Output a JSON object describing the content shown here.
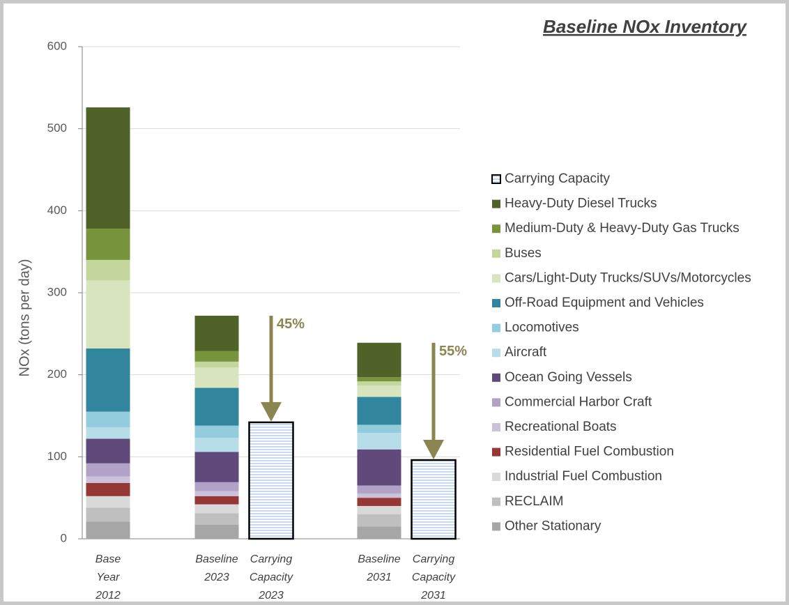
{
  "chart_data": {
    "type": "stacked_bar",
    "title": "Baseline NOx Inventory",
    "y_label": "NOx (tons per day)",
    "categories": [
      "Base Year 2012",
      "Baseline 2023",
      "Carrying Capacity 2023",
      "Baseline 2031",
      "Carrying Capacity 2031"
    ],
    "ylim": [
      0,
      600
    ],
    "yticks": [
      0,
      100,
      200,
      300,
      400,
      500,
      600
    ],
    "grid": true,
    "legend": "right",
    "series": [
      {
        "name": "Carrying Capacity",
        "color": "#dbe5f1",
        "values": [
          null,
          null,
          142,
          null,
          96
        ]
      },
      {
        "name": "Heavy-Duty Diesel Trucks",
        "color": "#4f6228",
        "values": [
          148,
          43,
          null,
          42,
          null
        ]
      },
      {
        "name": "Medium-Duty & Heavy-Duty Gas Trucks",
        "color": "#77933c",
        "values": [
          38,
          13,
          null,
          5,
          null
        ]
      },
      {
        "name": "Buses",
        "color": "#c3d69b",
        "values": [
          25,
          7,
          null,
          5,
          null
        ]
      },
      {
        "name": "Cars/Light-Duty Trucks/SUVs/Motorcycles",
        "color": "#d7e4bd",
        "values": [
          83,
          25,
          null,
          14,
          null
        ]
      },
      {
        "name": "Off-Road Equipment and Vehicles",
        "color": "#31859c",
        "values": [
          77,
          46,
          null,
          34,
          null
        ]
      },
      {
        "name": "Locomotives",
        "color": "#93cddd",
        "values": [
          19,
          15,
          null,
          10,
          null
        ]
      },
      {
        "name": "Aircraft",
        "color": "#b7dee8",
        "values": [
          14,
          17,
          null,
          20,
          null
        ]
      },
      {
        "name": "Ocean Going Vessels",
        "color": "#604a7b",
        "values": [
          30,
          37,
          null,
          44,
          null
        ]
      },
      {
        "name": "Commercial Harbor Craft",
        "color": "#b3a2c7",
        "values": [
          16,
          11,
          null,
          10,
          null
        ]
      },
      {
        "name": "Recreational Boats",
        "color": "#ccc1da",
        "values": [
          8,
          6,
          null,
          5,
          null
        ]
      },
      {
        "name": "Residential Fuel Combustion",
        "color": "#953735",
        "values": [
          16,
          10,
          null,
          10,
          null
        ]
      },
      {
        "name": "Industrial Fuel Combustion",
        "color": "#d9d9d9",
        "values": [
          14,
          11,
          null,
          10,
          null
        ]
      },
      {
        "name": "RECLAIM",
        "color": "#bfbfbf",
        "values": [
          17,
          14,
          null,
          15,
          null
        ]
      },
      {
        "name": "Other Stationary",
        "color": "#a6a6a6",
        "values": [
          21,
          17,
          null,
          15,
          null
        ]
      }
    ],
    "annotations": [
      {
        "text": "45%",
        "from": 1,
        "to": 2
      },
      {
        "text": "55%",
        "from": 3,
        "to": 4
      }
    ],
    "annotation_color": "#8b8552"
  }
}
